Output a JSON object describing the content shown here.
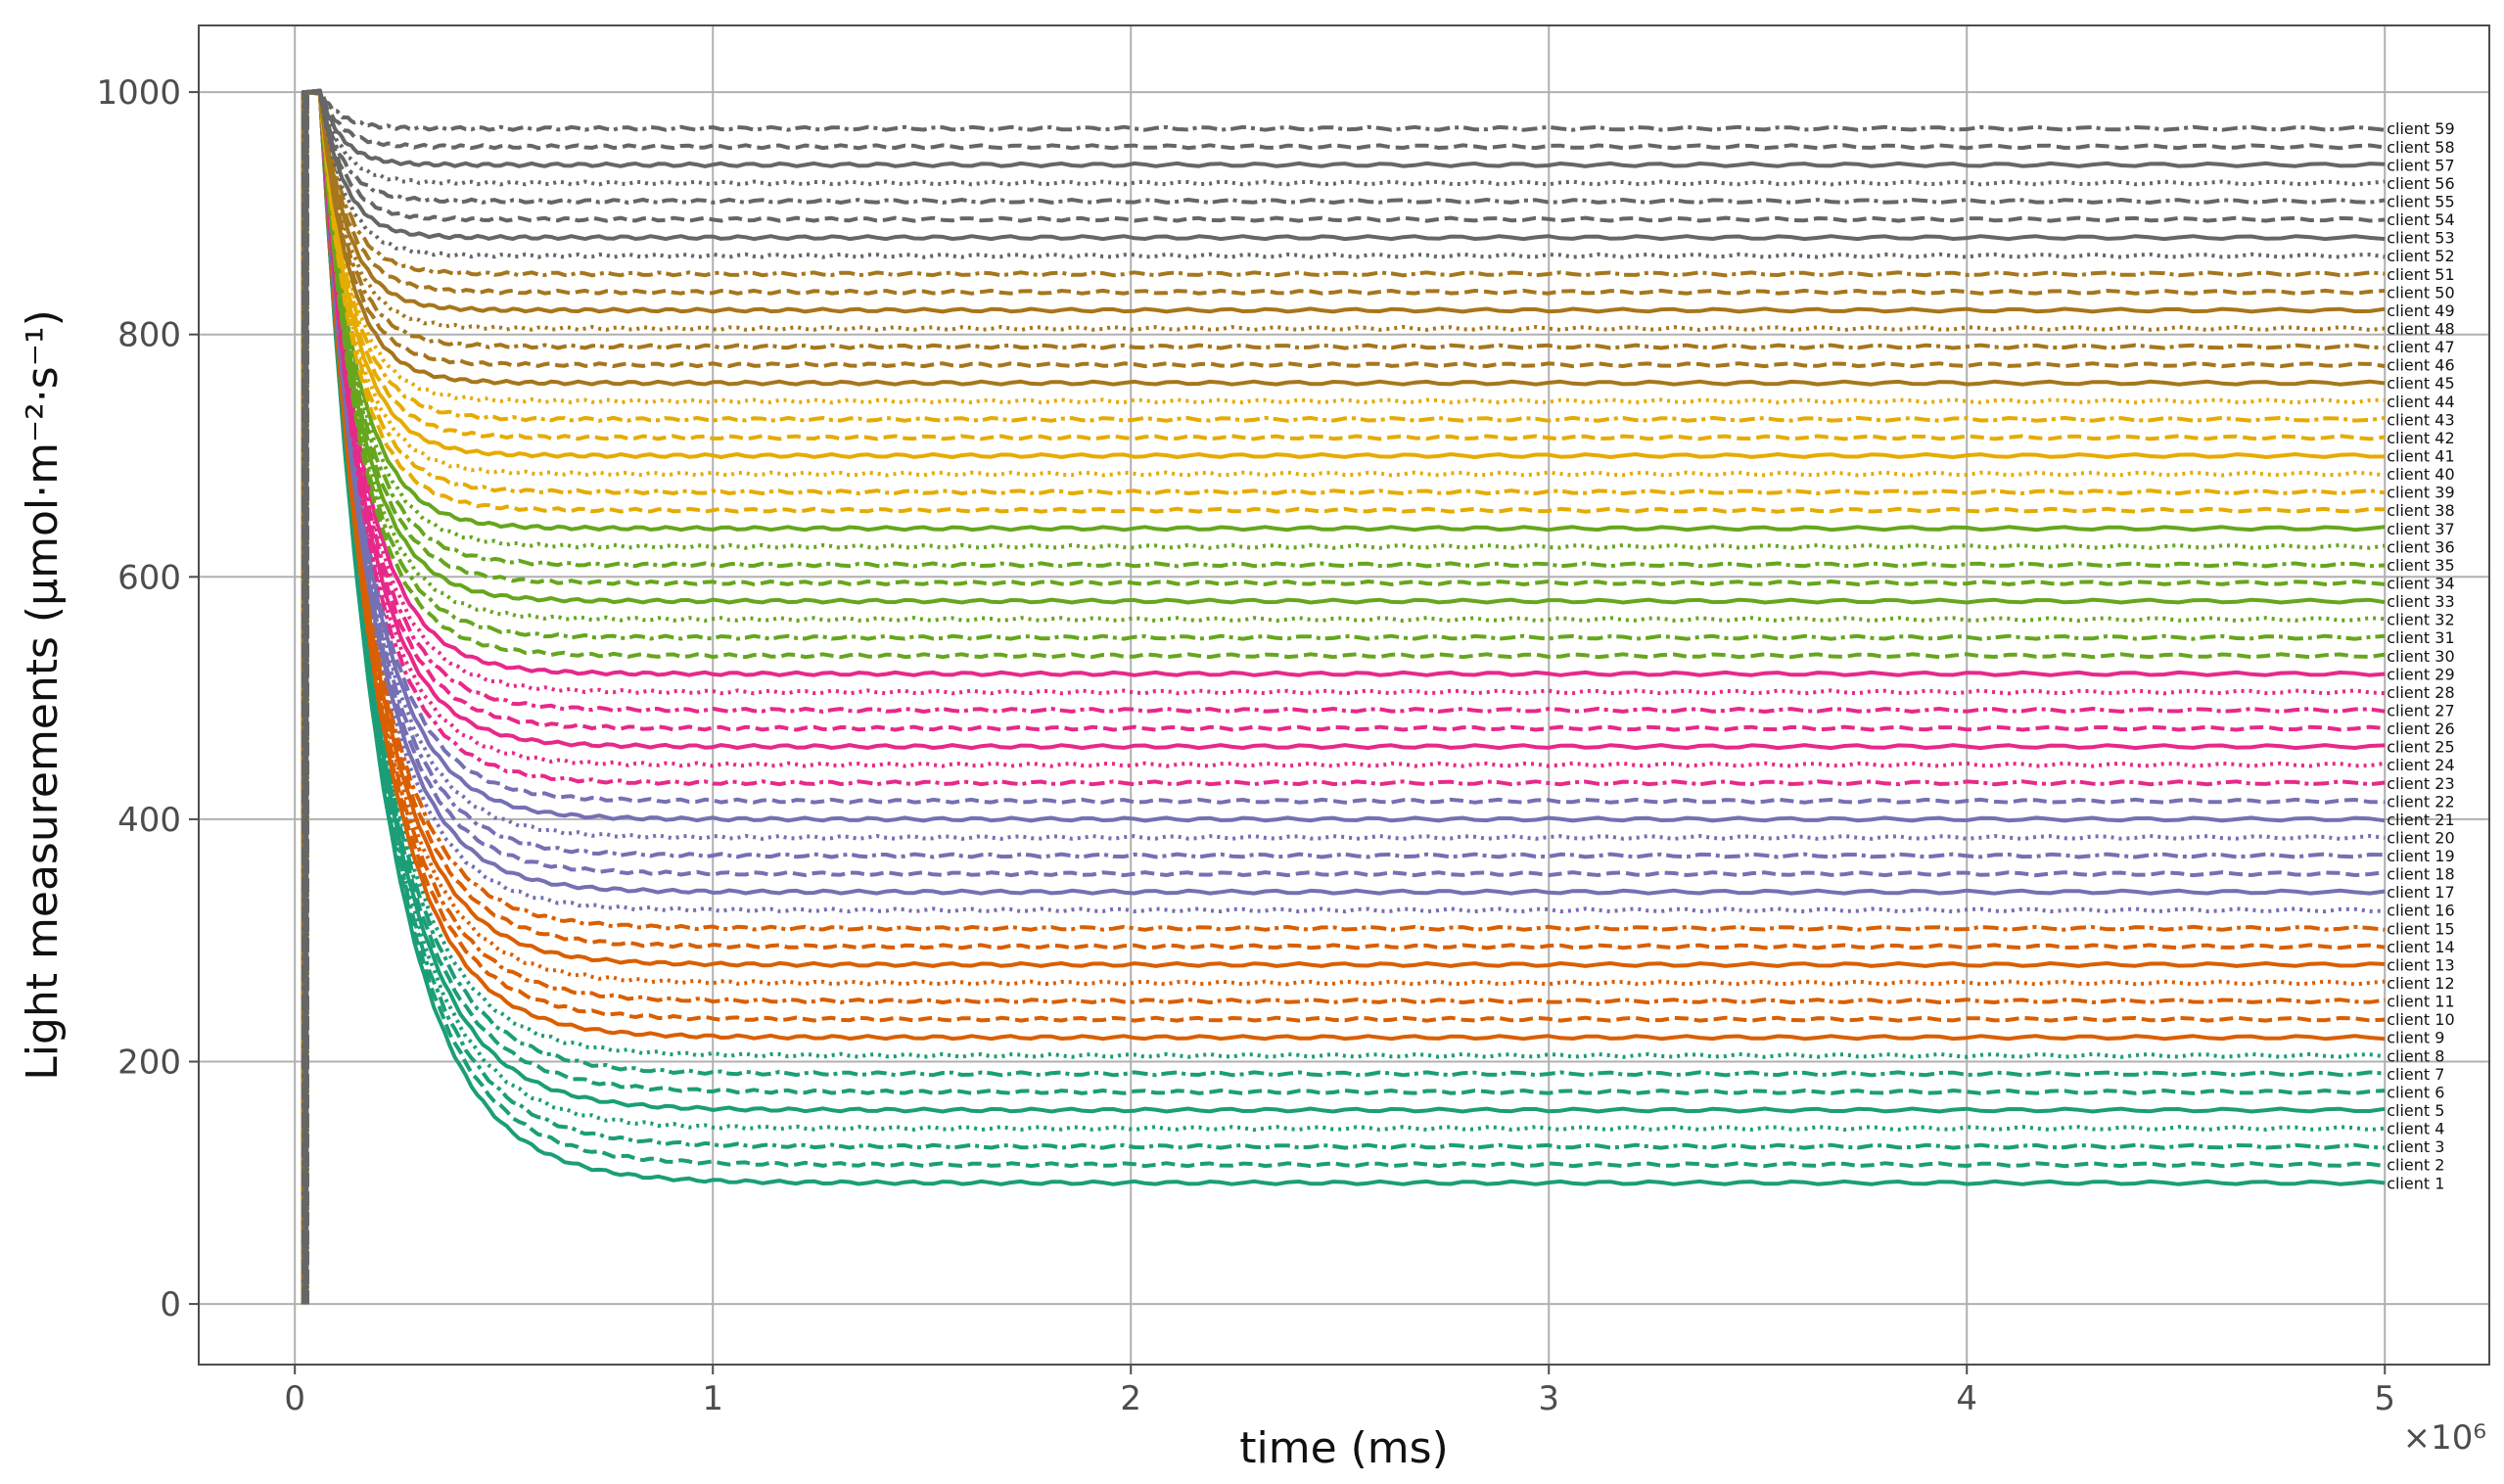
{
  "chart_data": {
    "type": "line",
    "xlabel": "time (ms)",
    "ylabel": "Light measurements (μmol·m⁻²·s⁻¹)",
    "x_scale_label": "×10⁶",
    "xlim": [
      -0.23,
      5.25
    ],
    "ylim": [
      -50,
      1055
    ],
    "x_ticks": [
      0,
      1,
      2,
      3,
      4,
      5
    ],
    "x_tick_labels": [
      "0",
      "1",
      "2",
      "3",
      "4",
      "5"
    ],
    "y_ticks": [
      0,
      200,
      400,
      600,
      800,
      1000
    ],
    "y_tick_labels": [
      "0",
      "200",
      "400",
      "600",
      "800",
      "1000"
    ],
    "grid": true,
    "legend": "none (inline labels at right end of each line)",
    "x_units_multiplier": 1000000,
    "start": {
      "x": 0.02,
      "y_low": 0,
      "y_high": 1000
    },
    "series": [
      {
        "name": "client 1",
        "value": 100,
        "color": "#1b9e77",
        "style": "solid"
      },
      {
        "name": "client 2",
        "value": 115,
        "color": "#1b9e77",
        "style": "dashed"
      },
      {
        "name": "client 3",
        "value": 130,
        "color": "#1b9e77",
        "style": "dashdot"
      },
      {
        "name": "client 4",
        "value": 145,
        "color": "#1b9e77",
        "style": "dotted"
      },
      {
        "name": "client 5",
        "value": 160,
        "color": "#1b9e77",
        "style": "solid"
      },
      {
        "name": "client 6",
        "value": 175,
        "color": "#1b9e77",
        "style": "dashed"
      },
      {
        "name": "client 7",
        "value": 190,
        "color": "#1b9e77",
        "style": "dashdot"
      },
      {
        "name": "client 8",
        "value": 205,
        "color": "#1b9e77",
        "style": "dotted"
      },
      {
        "name": "client 9",
        "value": 220,
        "color": "#d95f02",
        "style": "solid"
      },
      {
        "name": "client 10",
        "value": 235,
        "color": "#d95f02",
        "style": "dashed"
      },
      {
        "name": "client 11",
        "value": 250,
        "color": "#d95f02",
        "style": "dashdot"
      },
      {
        "name": "client 12",
        "value": 265,
        "color": "#d95f02",
        "style": "dotted"
      },
      {
        "name": "client 13",
        "value": 280,
        "color": "#d95f02",
        "style": "solid"
      },
      {
        "name": "client 14",
        "value": 295,
        "color": "#d95f02",
        "style": "dashed"
      },
      {
        "name": "client 15",
        "value": 310,
        "color": "#d95f02",
        "style": "dashdot"
      },
      {
        "name": "client 16",
        "value": 325,
        "color": "#7570b3",
        "style": "dotted"
      },
      {
        "name": "client 17",
        "value": 340,
        "color": "#7570b3",
        "style": "solid"
      },
      {
        "name": "client 18",
        "value": 355,
        "color": "#7570b3",
        "style": "dashed"
      },
      {
        "name": "client 19",
        "value": 370,
        "color": "#7570b3",
        "style": "dashdot"
      },
      {
        "name": "client 20",
        "value": 385,
        "color": "#7570b3",
        "style": "dotted"
      },
      {
        "name": "client 21",
        "value": 400,
        "color": "#7570b3",
        "style": "solid"
      },
      {
        "name": "client 22",
        "value": 415,
        "color": "#7570b3",
        "style": "dashed"
      },
      {
        "name": "client 23",
        "value": 430,
        "color": "#e7298a",
        "style": "dashdot"
      },
      {
        "name": "client 24",
        "value": 445,
        "color": "#e7298a",
        "style": "dotted"
      },
      {
        "name": "client 25",
        "value": 460,
        "color": "#e7298a",
        "style": "solid"
      },
      {
        "name": "client 26",
        "value": 475,
        "color": "#e7298a",
        "style": "dashed"
      },
      {
        "name": "client 27",
        "value": 490,
        "color": "#e7298a",
        "style": "dashdot"
      },
      {
        "name": "client 28",
        "value": 505,
        "color": "#e7298a",
        "style": "dotted"
      },
      {
        "name": "client 29",
        "value": 520,
        "color": "#e7298a",
        "style": "solid"
      },
      {
        "name": "client 30",
        "value": 535,
        "color": "#66a61e",
        "style": "dashed"
      },
      {
        "name": "client 31",
        "value": 550,
        "color": "#66a61e",
        "style": "dashdot"
      },
      {
        "name": "client 32",
        "value": 565,
        "color": "#66a61e",
        "style": "dotted"
      },
      {
        "name": "client 33",
        "value": 580,
        "color": "#66a61e",
        "style": "solid"
      },
      {
        "name": "client 34",
        "value": 595,
        "color": "#66a61e",
        "style": "dashed"
      },
      {
        "name": "client 35",
        "value": 610,
        "color": "#66a61e",
        "style": "dashdot"
      },
      {
        "name": "client 36",
        "value": 625,
        "color": "#66a61e",
        "style": "dotted"
      },
      {
        "name": "client 37",
        "value": 640,
        "color": "#66a61e",
        "style": "solid"
      },
      {
        "name": "client 38",
        "value": 655,
        "color": "#e6ab02",
        "style": "dashed"
      },
      {
        "name": "client 39",
        "value": 670,
        "color": "#e6ab02",
        "style": "dashdot"
      },
      {
        "name": "client 40",
        "value": 685,
        "color": "#e6ab02",
        "style": "dotted"
      },
      {
        "name": "client 41",
        "value": 700,
        "color": "#e6ab02",
        "style": "solid"
      },
      {
        "name": "client 42",
        "value": 715,
        "color": "#e6ab02",
        "style": "dashed"
      },
      {
        "name": "client 43",
        "value": 730,
        "color": "#e6ab02",
        "style": "dashdot"
      },
      {
        "name": "client 44",
        "value": 745,
        "color": "#e6ab02",
        "style": "dotted"
      },
      {
        "name": "client 45",
        "value": 760,
        "color": "#a6761d",
        "style": "solid"
      },
      {
        "name": "client 46",
        "value": 775,
        "color": "#a6761d",
        "style": "dashed"
      },
      {
        "name": "client 47",
        "value": 790,
        "color": "#a6761d",
        "style": "dashdot"
      },
      {
        "name": "client 48",
        "value": 805,
        "color": "#a6761d",
        "style": "dotted"
      },
      {
        "name": "client 49",
        "value": 820,
        "color": "#a6761d",
        "style": "solid"
      },
      {
        "name": "client 50",
        "value": 835,
        "color": "#a6761d",
        "style": "dashed"
      },
      {
        "name": "client 51",
        "value": 850,
        "color": "#a6761d",
        "style": "dashdot"
      },
      {
        "name": "client 52",
        "value": 865,
        "color": "#666666",
        "style": "dotted"
      },
      {
        "name": "client 53",
        "value": 880,
        "color": "#666666",
        "style": "solid"
      },
      {
        "name": "client 54",
        "value": 895,
        "color": "#666666",
        "style": "dashed"
      },
      {
        "name": "client 55",
        "value": 910,
        "color": "#666666",
        "style": "dashdot"
      },
      {
        "name": "client 56",
        "value": 925,
        "color": "#666666",
        "style": "dotted"
      },
      {
        "name": "client 57",
        "value": 940,
        "color": "#666666",
        "style": "solid"
      },
      {
        "name": "client 58",
        "value": 955,
        "color": "#666666",
        "style": "dashed"
      },
      {
        "name": "client 59",
        "value": 970,
        "color": "#666666",
        "style": "dashdot"
      }
    ]
  }
}
